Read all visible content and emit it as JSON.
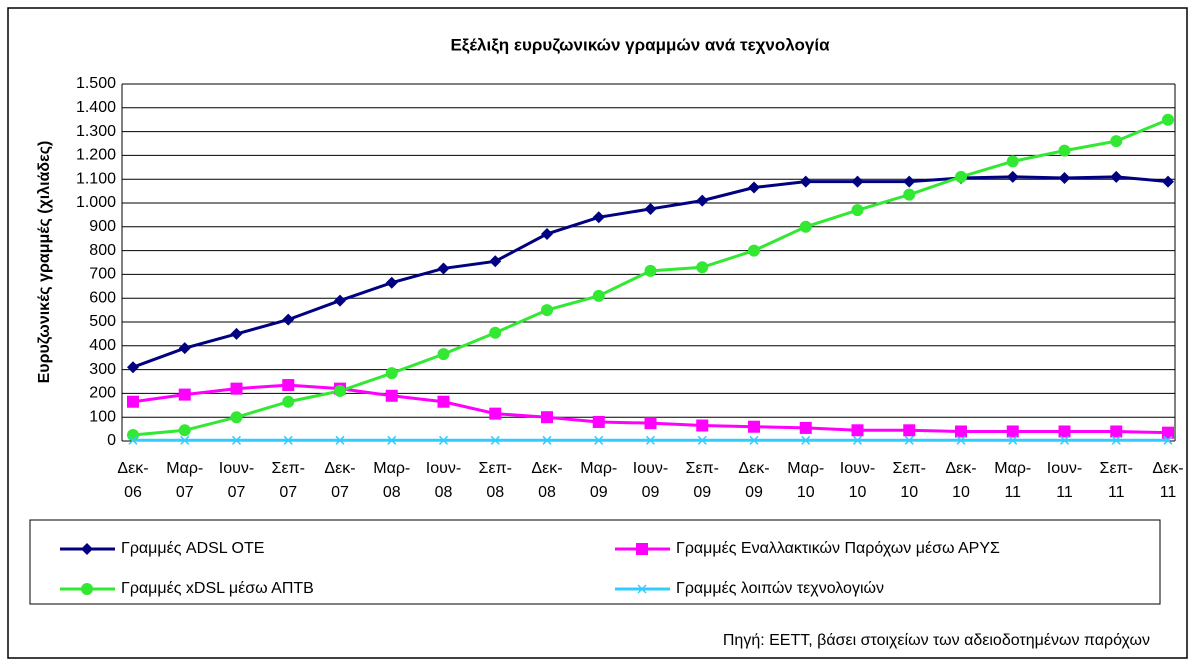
{
  "chart_data": {
    "type": "line",
    "title": "Εξέλιξη ευρυζωνικών γραμμών ανά τεχνολογία",
    "y_label": "Ευρυζωνικές γραμμές (χιλιάδες)",
    "source": "Πηγή: ΕΕΤΤ, βάσει στοιχείων των αδειοδοτημένων παρόχων",
    "categories": [
      "Δεκ-06",
      "Μαρ-07",
      "Ιουν-07",
      "Σεπ-07",
      "Δεκ-07",
      "Μαρ-08",
      "Ιουν-08",
      "Σεπ-08",
      "Δεκ-08",
      "Μαρ-09",
      "Ιουν-09",
      "Σεπ-09",
      "Δεκ-09",
      "Μαρ-10",
      "Ιουν-10",
      "Σεπ-10",
      "Δεκ-10",
      "Μαρ-11",
      "Ιουν-11",
      "Σεπ-11",
      "Δεκ-11"
    ],
    "series": [
      {
        "name": "Γραμμές ADSL ΟΤΕ",
        "color": "#000080",
        "marker": "diamond",
        "values": [
          310,
          390,
          450,
          510,
          590,
          665,
          725,
          755,
          870,
          940,
          975,
          1010,
          1065,
          1090,
          1090,
          1090,
          1105,
          1110,
          1105,
          1110,
          1090
        ]
      },
      {
        "name": "Γραμμές Εναλλακτικών Παρόχων μέσω ΑΡΥΣ",
        "color": "#ff00ff",
        "marker": "square",
        "values": [
          165,
          195,
          220,
          235,
          220,
          190,
          165,
          115,
          100,
          80,
          75,
          65,
          60,
          55,
          45,
          45,
          40,
          40,
          40,
          40,
          35
        ]
      },
      {
        "name": "Γραμμές xDSL μέσω ΑΠΤΒ",
        "color": "#33e833",
        "marker": "circle",
        "values": [
          25,
          45,
          100,
          165,
          210,
          285,
          365,
          455,
          550,
          610,
          715,
          730,
          800,
          900,
          970,
          1035,
          1110,
          1175,
          1220,
          1260,
          1350
        ]
      },
      {
        "name": "Γραμμές λοιπών τεχνολογιών",
        "color": "#33ccff",
        "marker": "x",
        "values": [
          3,
          3,
          3,
          3,
          3,
          3,
          3,
          3,
          3,
          3,
          3,
          3,
          3,
          3,
          3,
          3,
          3,
          3,
          3,
          3,
          3
        ]
      }
    ],
    "ylim": [
      0,
      1500
    ],
    "yticks": [
      0,
      100,
      200,
      300,
      400,
      500,
      600,
      700,
      800,
      900,
      {
        "value": 1000,
        "label": "1.000"
      },
      {
        "value": 1100,
        "label": "1.100"
      },
      {
        "value": 1200,
        "label": "1.200"
      },
      {
        "value": 1300,
        "label": "1.300"
      },
      {
        "value": 1400,
        "label": "1.400"
      },
      {
        "value": 1500,
        "label": "1.500"
      }
    ],
    "grid": true
  }
}
